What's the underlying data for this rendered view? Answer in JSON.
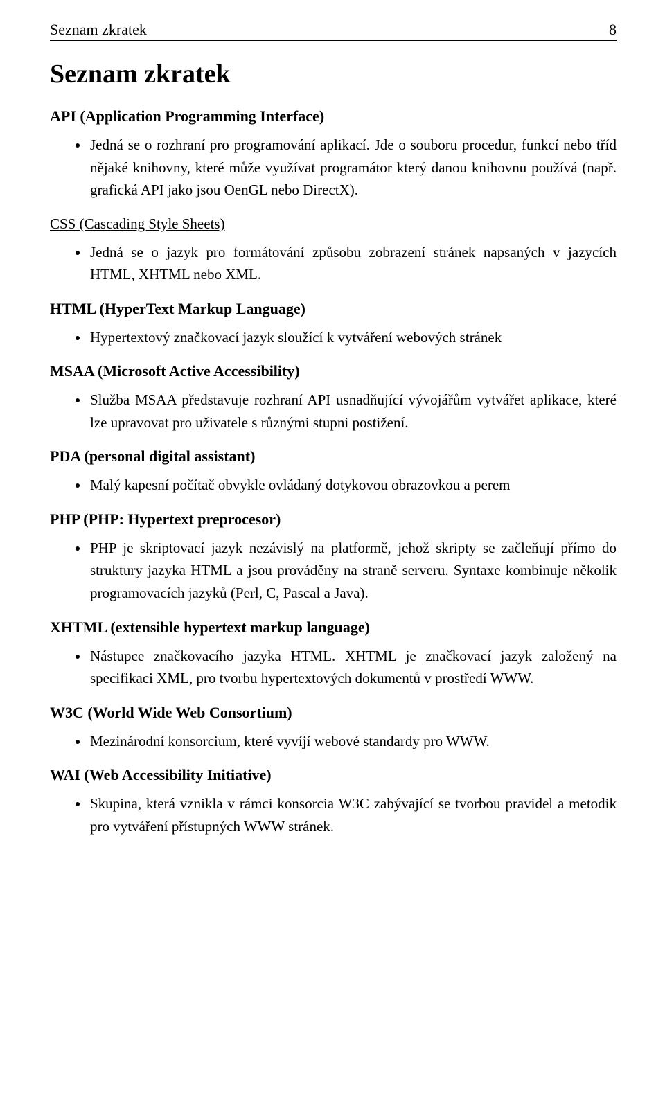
{
  "header": {
    "running_head": "Seznam zkratek",
    "page_number": "8"
  },
  "title": "Seznam zkratek",
  "entries": [
    {
      "id": "api",
      "underline": false,
      "heading": "API (Application Programming Interface)",
      "bullets": [
        "Jedná se o rozhraní pro programování aplikací. Jde o souboru procedur, funkcí nebo tříd nějaké knihovny, které může využívat programátor který danou knihovnu používá (např. grafická API jako jsou OenGL nebo DirectX)."
      ]
    },
    {
      "id": "css",
      "underline": true,
      "heading": "CSS (Cascading Style Sheets)",
      "bullets": [
        "Jedná se o jazyk pro formátování způsobu zobrazení stránek napsaných v jazycích HTML, XHTML nebo XML."
      ]
    },
    {
      "id": "html",
      "underline": false,
      "heading": "HTML (HyperText Markup Language)",
      "bullets": [
        "Hypertextový značkovací jazyk sloužící k vytváření webových stránek"
      ]
    },
    {
      "id": "msaa",
      "underline": false,
      "heading": "MSAA (Microsoft Active Accessibility)",
      "bullets": [
        "Služba MSAA představuje rozhraní API usnadňující vývojářům vytvářet aplikace, které lze upravovat pro uživatele s různými stupni postižení."
      ]
    },
    {
      "id": "pda",
      "underline": false,
      "heading": "PDA (personal digital assistant)",
      "bullets": [
        "Malý kapesní počítač obvykle ovládaný dotykovou obrazovkou a perem"
      ]
    },
    {
      "id": "php",
      "underline": false,
      "heading": "PHP (PHP: Hypertext preprocesor)",
      "bullets": [
        "PHP je skriptovací jazyk nezávislý na platformě, jehož skripty se začleňují přímo do struktury jazyka HTML a jsou prováděny na straně serveru. Syntaxe kombinuje několik programovacích jazyků (Perl, C, Pascal a Java)."
      ]
    },
    {
      "id": "xhtml",
      "underline": false,
      "heading": "XHTML (extensible hypertext markup language)",
      "bullets": [
        "Nástupce značkovacího jazyka HTML. XHTML je značkovací jazyk založený na specifikaci XML, pro tvorbu hypertextových dokumentů v prostředí WWW."
      ]
    },
    {
      "id": "w3c",
      "underline": false,
      "heading": "W3C (World Wide Web Consortium)",
      "bullets": [
        "Mezinárodní konsorcium, které  vyvíjí webové standardy pro WWW."
      ]
    },
    {
      "id": "wai",
      "underline": false,
      "heading": "WAI (Web Accessibility Initiative)",
      "bullets": [
        "Skupina, která vznikla v rámci konsorcia W3C zabývající se tvorbou pravidel a metodik pro vytváření přístupných WWW stránek."
      ]
    }
  ]
}
